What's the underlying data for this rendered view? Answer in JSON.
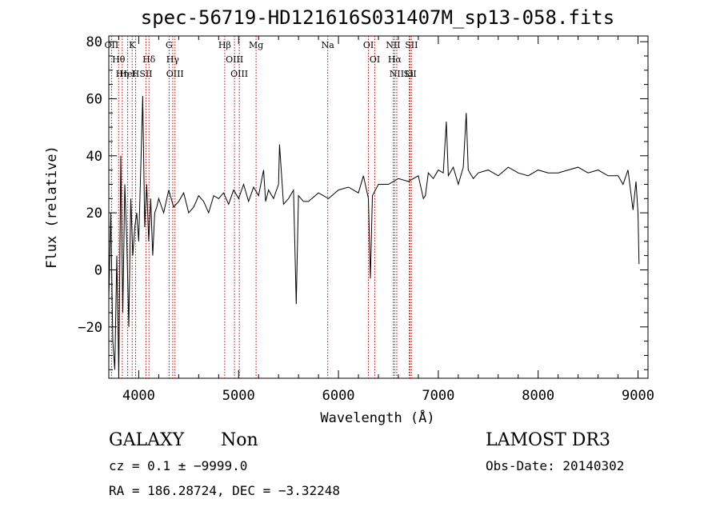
{
  "chart_data": {
    "type": "line",
    "title": "spec-56719-HD121616S031407M_sp13-058.fits",
    "xlabel": "Wavelength (Å)",
    "ylabel": "Flux (relative)",
    "xlim": [
      3700,
      9100
    ],
    "ylim": [
      -38,
      82
    ],
    "xticks": [
      4000,
      5000,
      6000,
      7000,
      8000,
      9000
    ],
    "xtick_labels": [
      "4000",
      "5000",
      "6000",
      "7000",
      "8000",
      "9000"
    ],
    "yticks": [
      -20,
      0,
      20,
      40,
      60,
      80
    ],
    "ytick_labels": [
      "−20",
      "0",
      "20",
      "40",
      "60",
      "80"
    ],
    "series": [
      {
        "name": "spectrum",
        "x": [
          3700,
          3720,
          3740,
          3760,
          3780,
          3800,
          3820,
          3840,
          3860,
          3880,
          3900,
          3920,
          3940,
          3960,
          3980,
          4000,
          4020,
          4040,
          4060,
          4080,
          4100,
          4120,
          4140,
          4160,
          4180,
          4200,
          4250,
          4300,
          4350,
          4400,
          4450,
          4500,
          4550,
          4600,
          4650,
          4700,
          4750,
          4800,
          4850,
          4900,
          4950,
          5000,
          5050,
          5100,
          5150,
          5200,
          5250,
          5270,
          5300,
          5350,
          5400,
          5410,
          5450,
          5500,
          5550,
          5577,
          5600,
          5650,
          5700,
          5800,
          5900,
          6000,
          6100,
          6200,
          6250,
          6300,
          6320,
          6340,
          6400,
          6500,
          6600,
          6700,
          6800,
          6850,
          6870,
          6900,
          6950,
          7000,
          7050,
          7080,
          7100,
          7150,
          7200,
          7250,
          7280,
          7300,
          7350,
          7400,
          7500,
          7600,
          7700,
          7800,
          7900,
          8000,
          8100,
          8200,
          8300,
          8400,
          8500,
          8600,
          8700,
          8800,
          8850,
          8900,
          8950,
          8980,
          9000,
          9010
        ],
        "y": [
          -10,
          20,
          -25,
          -35,
          5,
          -37,
          40,
          -15,
          30,
          10,
          -20,
          25,
          5,
          15,
          20,
          10,
          35,
          61,
          15,
          30,
          10,
          25,
          5,
          20,
          22,
          25,
          20,
          28,
          22,
          24,
          27,
          20,
          22,
          26,
          24,
          20,
          26,
          25,
          27,
          23,
          28,
          25,
          30,
          24,
          29,
          26,
          35,
          24,
          28,
          25,
          30,
          44,
          23,
          25,
          28,
          -12,
          26,
          24,
          24,
          27,
          25,
          28,
          29,
          27,
          33,
          25,
          -3,
          26,
          30,
          30,
          32,
          31,
          33,
          25,
          26,
          34,
          32,
          35,
          34,
          52,
          33,
          36,
          30,
          36,
          55,
          35,
          32,
          34,
          35,
          33,
          36,
          34,
          33,
          35,
          34,
          34,
          35,
          36,
          34,
          35,
          33,
          33,
          30,
          35,
          21,
          31,
          20,
          2
        ]
      }
    ],
    "lines": [
      {
        "label": "OII",
        "wl": 3727
      },
      {
        "label": "Hθ",
        "wl": 3798
      },
      {
        "label": "Hη",
        "wl": 3835
      },
      {
        "label": "HeI",
        "wl": 3889
      },
      {
        "label": "K",
        "wl": 3934
      },
      {
        "label": "H",
        "wl": 3968
      },
      {
        "label": "Hδ",
        "wl": 4102
      },
      {
        "label": "SII",
        "wl": 4072
      },
      {
        "label": "G",
        "wl": 4304
      },
      {
        "label": "Hγ",
        "wl": 4340
      },
      {
        "label": "OIII",
        "wl": 4363
      },
      {
        "label": "Hβ",
        "wl": 4861
      },
      {
        "label": "OIII",
        "wl": 4959
      },
      {
        "label": "OIII",
        "wl": 5007
      },
      {
        "label": "Mg",
        "wl": 5175
      },
      {
        "label": "Na",
        "wl": 5893
      },
      {
        "label": "OI",
        "wl": 6300
      },
      {
        "label": "OI",
        "wl": 6364
      },
      {
        "label": "NII",
        "wl": 6548
      },
      {
        "label": "Hα",
        "wl": 6563
      },
      {
        "label": "NII",
        "wl": 6584
      },
      {
        "label": "Li",
        "wl": 6708
      },
      {
        "label": "SII",
        "wl": 6717
      },
      {
        "label": "SII",
        "wl": 6731
      }
    ]
  },
  "info": {
    "class": "GALAXY",
    "subclass": "Non",
    "survey": "LAMOST DR3",
    "cz": "cz = 0.1 ± −9999.0",
    "obs_date": "Obs-Date: 20140302",
    "radec": "RA = 186.28724, DEC =  −3.32248"
  }
}
